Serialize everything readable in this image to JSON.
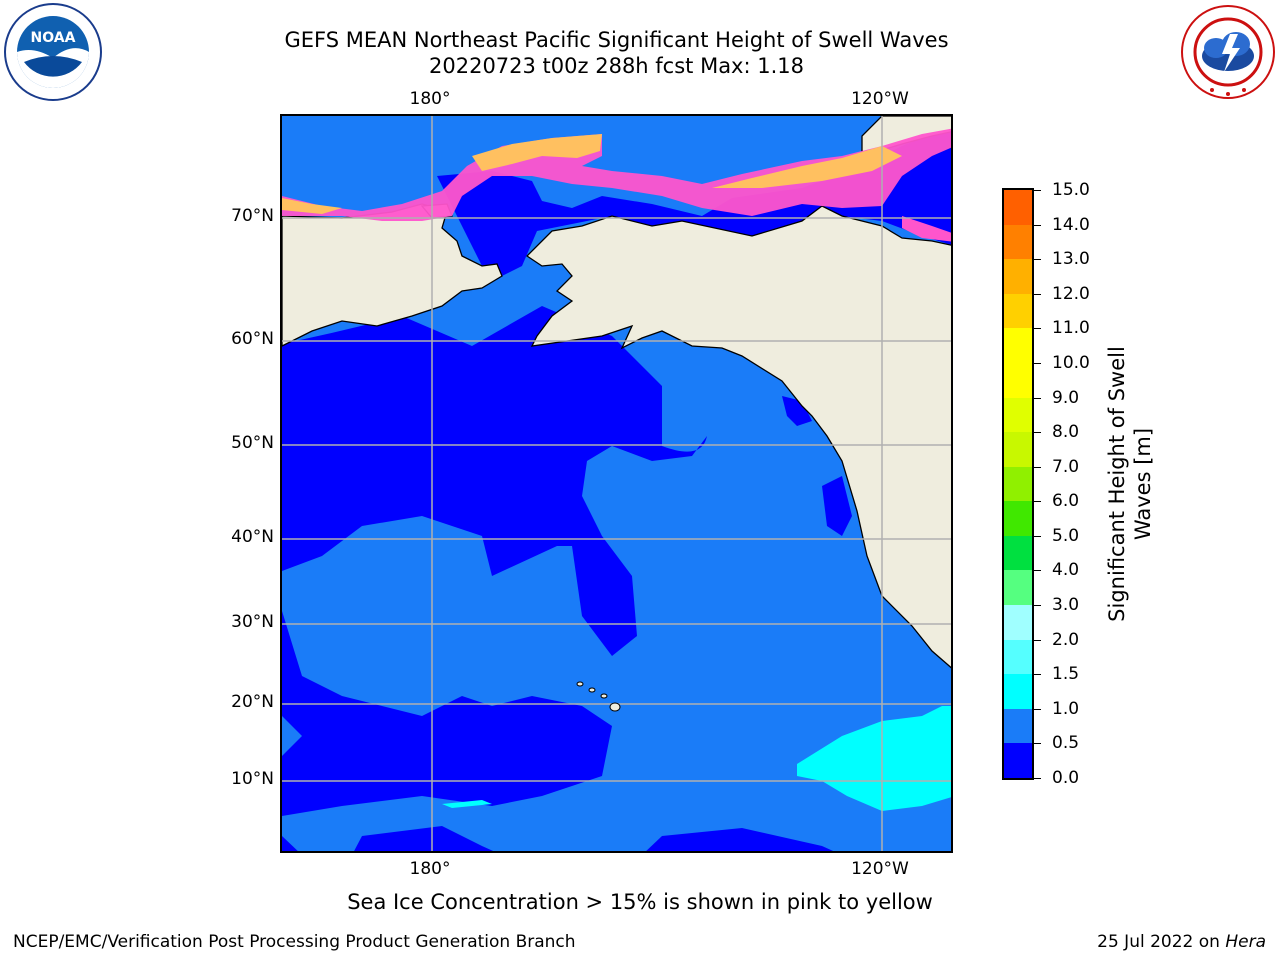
{
  "title": {
    "line1": "GEFS MEAN Northeast Pacific Significant Height of Swell Waves",
    "line2": "20220723 t00z 288h fcst   Max: 1.18"
  },
  "logos": {
    "left": {
      "icon": "noaa-logo",
      "text": "NOAA",
      "ring_text": "NATIONAL OCEANIC AND ATMOSPHERIC ADMINISTRATION · U.S. DEPARTMENT OF COMMERCE"
    },
    "right": {
      "icon": "nws-logo",
      "ring_text": "NATIONAL WEATHER SERVICE"
    }
  },
  "map": {
    "lon_labels_top": [
      "180°",
      "120°W"
    ],
    "lon_labels_bottom": [
      "180°",
      "120°W"
    ],
    "lat_labels": [
      "70°N",
      "60°N",
      "50°N",
      "40°N",
      "30°N",
      "20°N",
      "10°N"
    ],
    "grid": true,
    "colors": {
      "land": "#efedde",
      "coast": "#000000",
      "grid": "#b0b0b0",
      "wave_0_0_5": "#0000ff",
      "wave_0_5_1_0": "#1a7cf8",
      "wave_1_0_1_5": "#00ffff",
      "ice_low": "#ff55cc",
      "ice_high": "#ffc060"
    }
  },
  "colorbar": {
    "title_line1": "Significant Height of Swell",
    "title_line2": "Waves [m]",
    "labels": [
      "15.0",
      "14.0",
      "13.0",
      "12.0",
      "11.0",
      "10.0",
      "9.0",
      "8.0",
      "7.0",
      "6.0",
      "5.0",
      "4.0",
      "3.0",
      "2.0",
      "1.5",
      "1.0",
      "0.5",
      "0.0"
    ],
    "colors": [
      "#0000ff",
      "#1a7cf8",
      "#00ffff",
      "#55ffff",
      "#a0ffff",
      "#55ff80",
      "#00e040",
      "#40e800",
      "#90f000",
      "#c8f800",
      "#e0ff00",
      "#ffff00",
      "#ffff00",
      "#ffd000",
      "#ffb000",
      "#ff8000",
      "#ff6000",
      "#ff3000",
      "#ff0000"
    ]
  },
  "caption": "Sea Ice Concentration > 15% is shown in pink to yellow",
  "footer": {
    "left": "NCEP/EMC/Verification Post Processing Product Generation Branch",
    "right_prefix": "25 Jul 2022 on ",
    "right_host": "Hera"
  }
}
